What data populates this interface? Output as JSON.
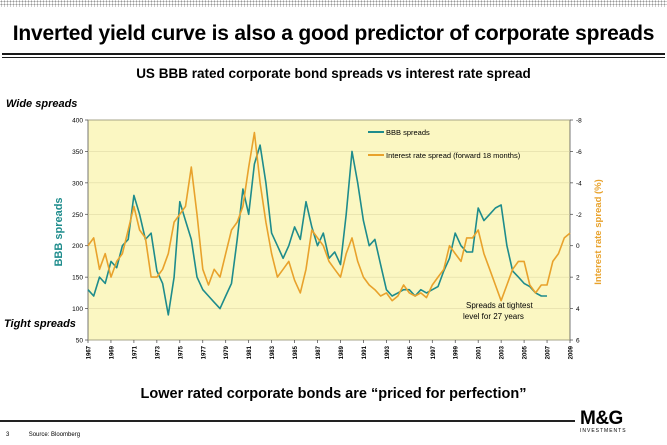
{
  "slide": {
    "headline": "Inverted yield curve is also a good predictor of corporate spreads",
    "subtitle": "US BBB rated corporate bond spreads vs interest rate spread",
    "wide_label": "Wide spreads",
    "tight_label": "Tight spreads",
    "footer": "Lower rated corporate bonds are “priced for perfection”",
    "source": "Source: Bloomberg",
    "page_number": "3",
    "logo": "M&G",
    "logo_sub": "INVESTMENTS"
  },
  "colors": {
    "bbb": "#1e8c8c",
    "rate": "#e8a22c",
    "plot_bg": "#fbf7c2",
    "text": "#000000"
  },
  "chart_data": {
    "type": "line",
    "xlim": [
      1967,
      2009
    ],
    "x_ticks": [
      "1967",
      "1969",
      "1971",
      "1973",
      "1975",
      "1977",
      "1979",
      "1981",
      "1983",
      "1985",
      "1987",
      "1989",
      "1991",
      "1993",
      "1995",
      "1997",
      "1999",
      "2001",
      "2003",
      "2005",
      "2007",
      "2009"
    ],
    "ylabel": "BBB spreads",
    "ylim": [
      50,
      400
    ],
    "y_ticks": [
      "400",
      "350",
      "300",
      "250",
      "200",
      "150",
      "100",
      "50"
    ],
    "ylabel_right": "Interest rate spread (%)",
    "y2lim": [
      -8,
      6
    ],
    "y2_inverted": true,
    "y2_ticks": [
      "-8",
      "-6",
      "-4",
      "-2",
      "0",
      "2",
      "4",
      "6"
    ],
    "annotation": "Spreads at tightest level for 27 years",
    "series": [
      {
        "name": "BBB spreads",
        "axis": "left",
        "x": [
          1967,
          1967.5,
          1968,
          1968.5,
          1969,
          1969.5,
          1970,
          1970.5,
          1971,
          1971.5,
          1972,
          1972.5,
          1973,
          1973.5,
          1974,
          1974.5,
          1975,
          1975.5,
          1976,
          1976.5,
          1977,
          1977.5,
          1978,
          1978.5,
          1979,
          1979.5,
          1980,
          1980.5,
          1981,
          1981.5,
          1982,
          1982.5,
          1983,
          1983.5,
          1984,
          1984.5,
          1985,
          1985.5,
          1986,
          1986.5,
          1987,
          1987.5,
          1988,
          1988.5,
          1989,
          1989.5,
          1990,
          1990.5,
          1991,
          1991.5,
          1992,
          1992.5,
          1993,
          1993.5,
          1994,
          1994.5,
          1995,
          1995.5,
          1996,
          1996.5,
          1997,
          1997.5,
          1998,
          1998.5,
          1999,
          1999.5,
          2000,
          2000.5,
          2001,
          2001.5,
          2002,
          2002.5,
          2003,
          2003.5,
          2004,
          2004.5,
          2005,
          2005.5,
          2006,
          2006.5,
          2007
        ],
        "values": [
          130,
          120,
          150,
          140,
          175,
          165,
          200,
          210,
          280,
          250,
          210,
          220,
          160,
          140,
          90,
          150,
          270,
          240,
          210,
          150,
          130,
          120,
          110,
          100,
          120,
          140,
          210,
          290,
          250,
          330,
          360,
          300,
          220,
          200,
          180,
          200,
          230,
          210,
          270,
          230,
          200,
          220,
          180,
          190,
          170,
          250,
          350,
          300,
          240,
          200,
          210,
          170,
          130,
          120,
          125,
          130,
          130,
          120,
          130,
          125,
          130,
          135,
          160,
          180,
          220,
          200,
          190,
          190,
          260,
          240,
          250,
          260,
          265,
          200,
          160,
          150,
          140,
          135,
          125,
          120,
          120
        ]
      },
      {
        "name": "Interest rate spread (forward 18 months)",
        "axis": "right",
        "x": [
          1967,
          1967.5,
          1968,
          1968.5,
          1969,
          1969.5,
          1970,
          1970.5,
          1971,
          1971.5,
          1972,
          1972.5,
          1973,
          1973.5,
          1974,
          1974.5,
          1975,
          1975.5,
          1976,
          1976.5,
          1977,
          1977.5,
          1978,
          1978.5,
          1979,
          1979.5,
          1980,
          1980.5,
          1981,
          1981.5,
          1982,
          1982.5,
          1983,
          1983.5,
          1984,
          1984.5,
          1985,
          1985.5,
          1986,
          1986.5,
          1987,
          1987.5,
          1988,
          1988.5,
          1989,
          1989.5,
          1990,
          1990.5,
          1991,
          1991.5,
          1992,
          1992.5,
          1993,
          1993.5,
          1994,
          1994.5,
          1995,
          1995.5,
          1996,
          1996.5,
          1997,
          1997.5,
          1998,
          1998.5,
          1999,
          1999.5,
          2000,
          2000.5,
          2001,
          2001.5,
          2002,
          2002.5,
          2003,
          2003.5,
          2004,
          2004.5,
          2005,
          2005.5,
          2006,
          2006.5,
          2007,
          2007.5,
          2008,
          2008.5,
          2009
        ],
        "values": [
          0,
          -0.5,
          1.5,
          0.5,
          2,
          1,
          0.5,
          -1,
          -2.5,
          -1,
          -0.5,
          2,
          2,
          1.5,
          0.5,
          -1.5,
          -2,
          -2.5,
          -5,
          -2,
          1.5,
          2.5,
          1.5,
          2,
          0.5,
          -1,
          -1.5,
          -2.5,
          -5,
          -7.2,
          -4,
          -1.5,
          0.5,
          2,
          1.5,
          1,
          2.2,
          3,
          1.5,
          -1,
          -0.5,
          0,
          1,
          1.5,
          2,
          0.5,
          -0.5,
          1,
          2,
          2.5,
          2.8,
          3.2,
          3,
          3.5,
          3.2,
          2.5,
          3,
          3.2,
          3,
          3.3,
          2.5,
          2,
          1.5,
          0,
          0.5,
          1,
          -0.5,
          -0.5,
          -1,
          0.5,
          1.5,
          2.5,
          3.5,
          2.5,
          1.5,
          1,
          1,
          2.5,
          3,
          2.5,
          2.5,
          1,
          0.5,
          -0.5,
          -0.8
        ]
      }
    ]
  }
}
